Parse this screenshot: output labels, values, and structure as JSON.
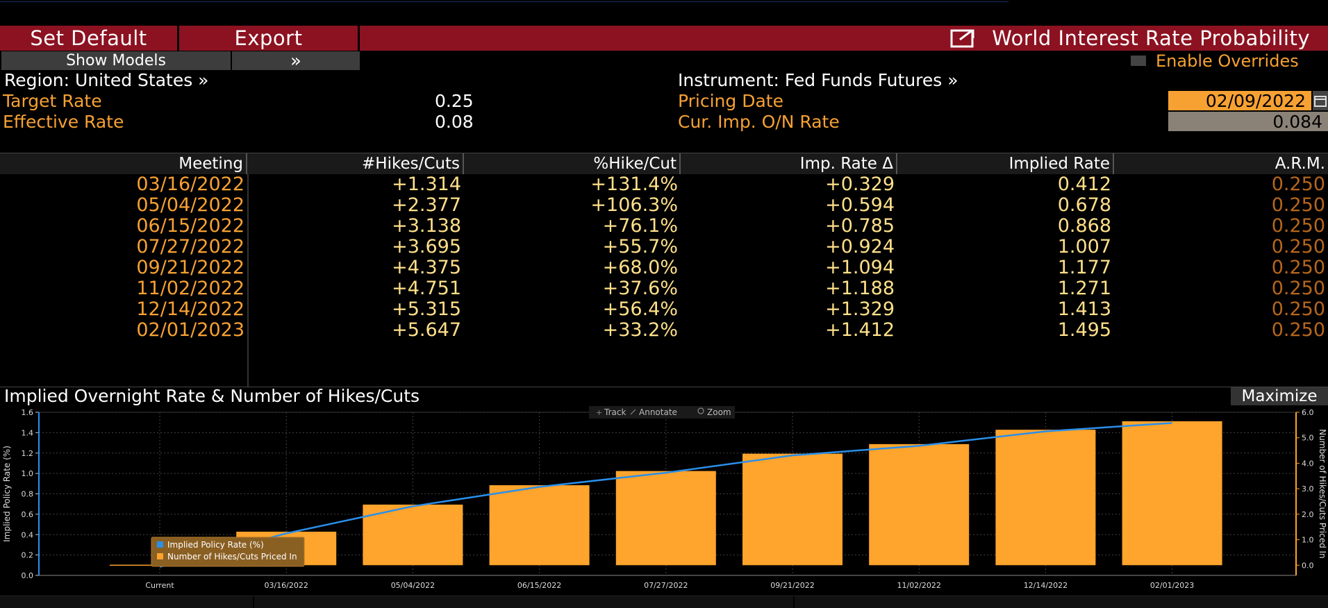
{
  "toolbar": {
    "set_default": "Set Default",
    "export": "Export",
    "title": "World Interest Rate Probability",
    "show_models": "Show Models",
    "expand_glyph": "»",
    "enable_overrides": "Enable Overrides"
  },
  "info": {
    "region": "Region: United States »",
    "instrument": "Instrument: Fed Funds Futures »",
    "target_rate_label": "Target Rate",
    "target_rate_value": "0.25",
    "effective_rate_label": "Effective Rate",
    "effective_rate_value": "0.08",
    "pricing_date_label": "Pricing Date",
    "pricing_date_value": "02/09/2022",
    "cur_imp_label": "Cur. Imp. O/N Rate",
    "cur_imp_value": "0.084"
  },
  "table": {
    "headers": [
      "Meeting",
      "#Hikes/Cuts",
      "%Hike/Cut",
      "Imp. Rate Δ",
      "Implied Rate",
      "A.R.M."
    ],
    "rows": [
      [
        "03/16/2022",
        "+1.314",
        "+131.4%",
        "+0.329",
        "0.412",
        "0.250"
      ],
      [
        "05/04/2022",
        "+2.377",
        "+106.3%",
        "+0.594",
        "0.678",
        "0.250"
      ],
      [
        "06/15/2022",
        "+3.138",
        "+76.1%",
        "+0.785",
        "0.868",
        "0.250"
      ],
      [
        "07/27/2022",
        "+3.695",
        "+55.7%",
        "+0.924",
        "1.007",
        "0.250"
      ],
      [
        "09/21/2022",
        "+4.375",
        "+68.0%",
        "+1.094",
        "1.177",
        "0.250"
      ],
      [
        "11/02/2022",
        "+4.751",
        "+37.6%",
        "+1.188",
        "1.271",
        "0.250"
      ],
      [
        "12/14/2022",
        "+5.315",
        "+56.4%",
        "+1.329",
        "1.413",
        "0.250"
      ],
      [
        "02/01/2023",
        "+5.647",
        "+33.2%",
        "+1.412",
        "1.495",
        "0.250"
      ]
    ]
  },
  "chart": {
    "title": "Implied Overnight Rate & Number of Hikes/Cuts",
    "maximize": "Maximize",
    "tools": [
      "Track",
      "Annotate",
      "Zoom"
    ]
  },
  "colors": {
    "bar": "#ffa42c",
    "line": "#2a8fea",
    "accent_red": "#8c1221",
    "orange_text": "#f7a133"
  },
  "chart_data": {
    "type": "bar",
    "title": "Implied Overnight Rate & Number of Hikes/Cuts",
    "categories": [
      "Current",
      "03/16/2022",
      "05/04/2022",
      "06/15/2022",
      "07/27/2022",
      "09/21/2022",
      "11/02/2022",
      "12/14/2022",
      "02/01/2023"
    ],
    "series": [
      {
        "name": "Number of Hikes/Cuts Priced In",
        "kind": "bar",
        "axis": "right",
        "values": [
          0,
          1.314,
          2.377,
          3.138,
          3.695,
          4.375,
          4.751,
          5.315,
          5.647
        ]
      },
      {
        "name": "Implied Policy Rate (%)",
        "kind": "line",
        "axis": "left",
        "values": [
          0.084,
          0.412,
          0.678,
          0.868,
          1.007,
          1.177,
          1.271,
          1.413,
          1.495
        ]
      }
    ],
    "ylabel": "Implied Policy Rate (%)",
    "y2label": "Number of Hikes/Cuts Priced In",
    "ylim": [
      0,
      1.6
    ],
    "y2lim": [
      -0.4,
      6.0
    ],
    "yticks": [
      "0.0",
      "0.2",
      "0.4",
      "0.6",
      "0.8",
      "1.0",
      "1.2",
      "1.4",
      "1.6"
    ],
    "y2ticks": [
      "0.0",
      "1.0",
      "2.0",
      "3.0",
      "4.0",
      "5.0",
      "6.0"
    ],
    "legend_position": "bottom-left",
    "grid": true
  }
}
